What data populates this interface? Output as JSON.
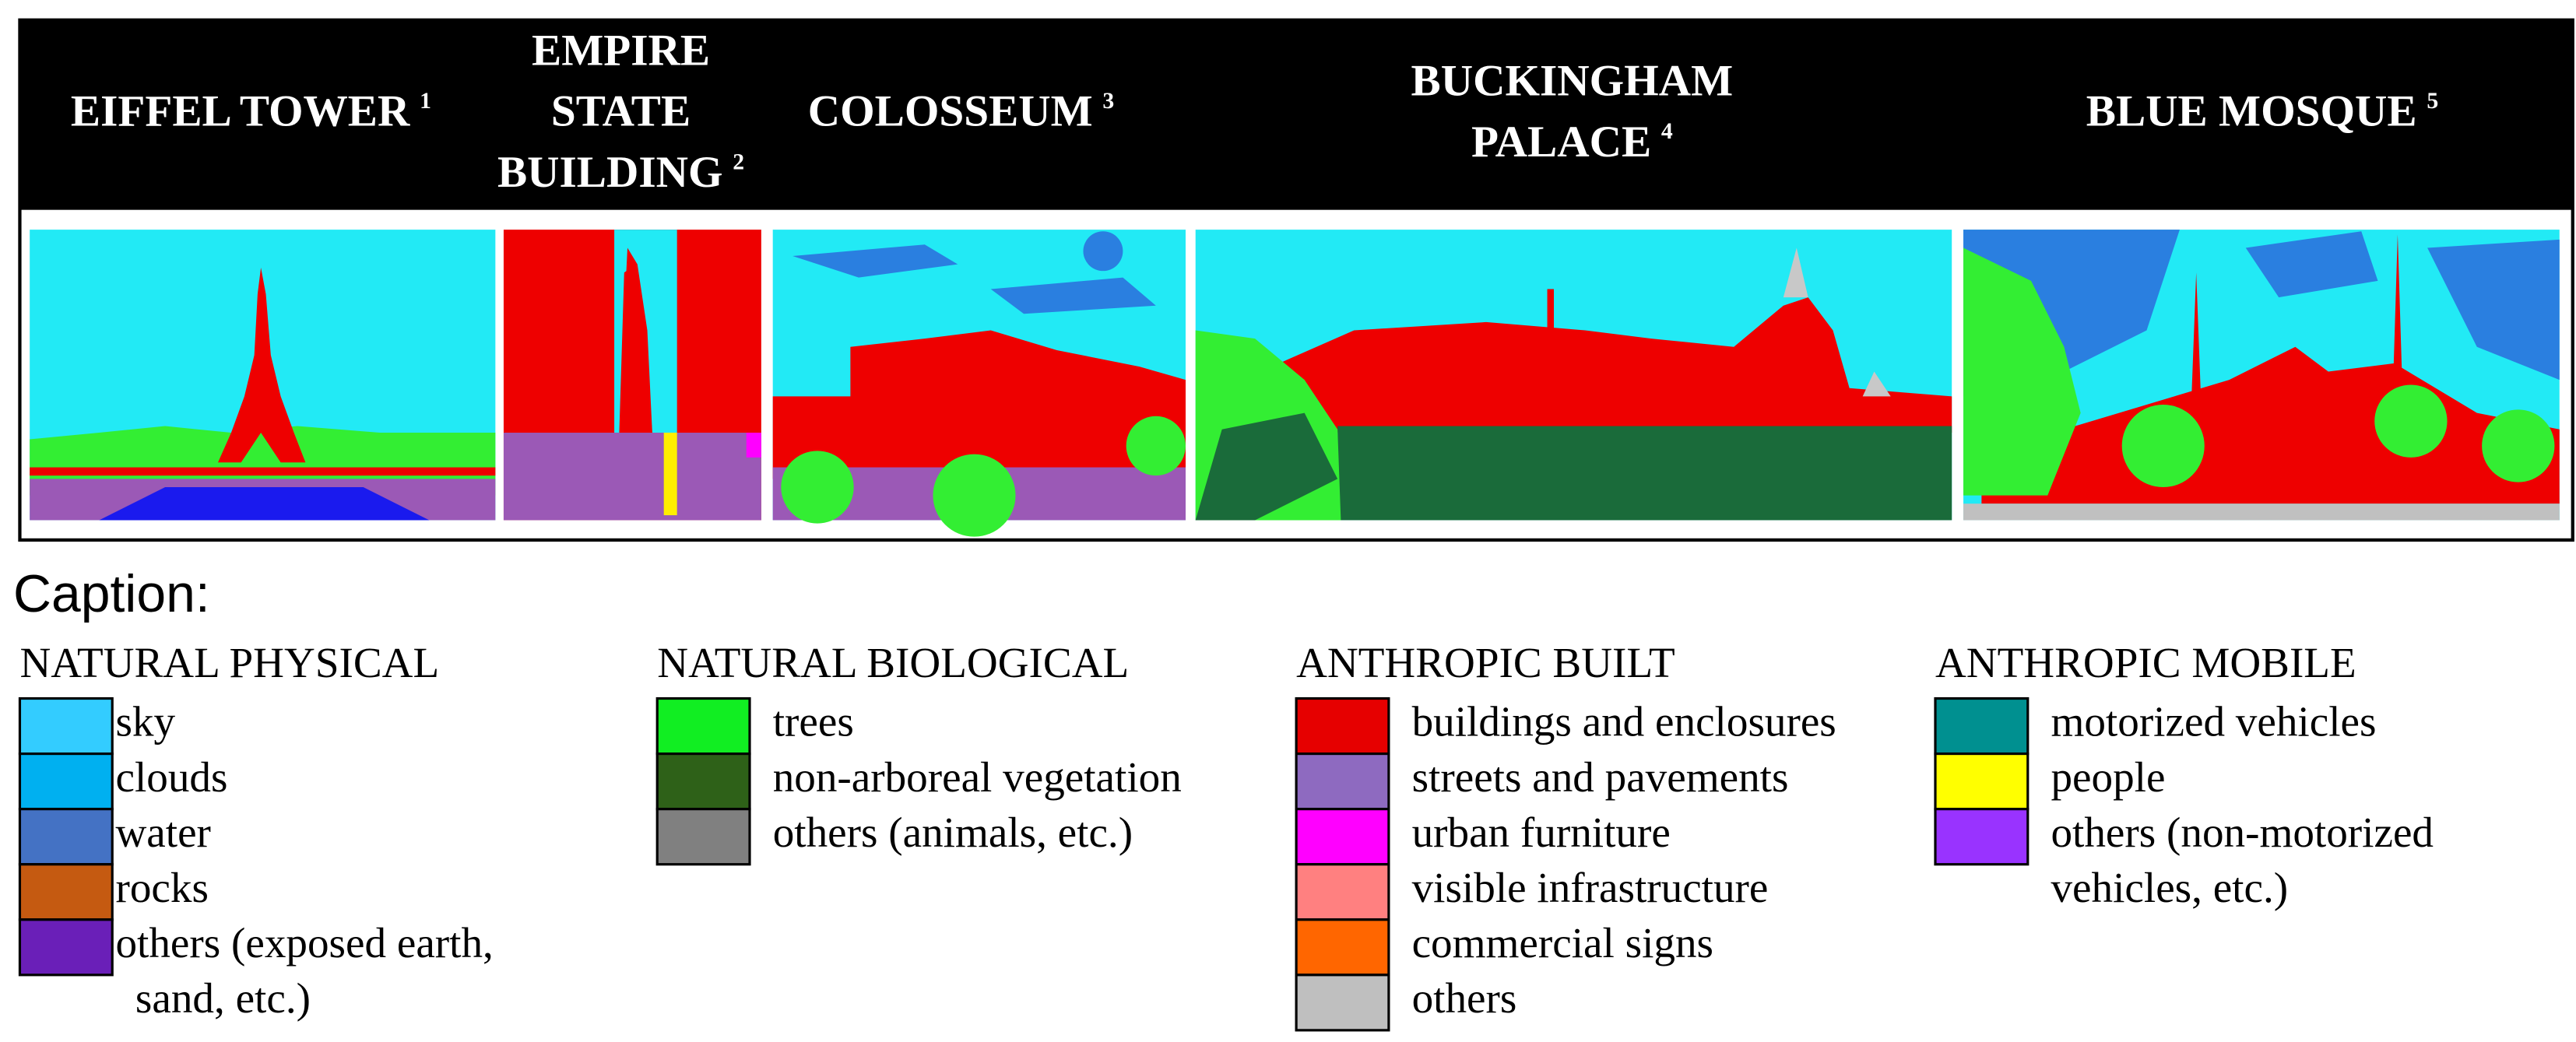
{
  "header": {
    "columns": [
      {
        "lines": [
          "EIFFEL TOWER"
        ],
        "note": "1"
      },
      {
        "lines": [
          "EMPIRE",
          "STATE",
          "BUILDING"
        ],
        "note": "2"
      },
      {
        "lines": [
          "COLOSSEUM"
        ],
        "note": "3"
      },
      {
        "lines": [
          "BUCKINGHAM",
          "PALACE"
        ],
        "note": "4"
      },
      {
        "lines": [
          "BLUE MOSQUE"
        ],
        "note": "5"
      }
    ]
  },
  "caption": {
    "title": "Caption:",
    "groups": [
      {
        "title": "NATURAL PHYSICAL",
        "items": [
          {
            "lines": [
              "sky"
            ],
            "color": "#33ccff"
          },
          {
            "lines": [
              "clouds"
            ],
            "color": "#00b0f0"
          },
          {
            "lines": [
              "water"
            ],
            "color": "#4472c4"
          },
          {
            "lines": [
              "rocks"
            ],
            "color": "#c55a11"
          },
          {
            "lines": [
              "others (exposed earth,",
              "sand, etc.)"
            ],
            "color": "#6a1fb8"
          }
        ]
      },
      {
        "title": "NATURAL BIOLOGICAL",
        "items": [
          {
            "lines": [
              "trees"
            ],
            "color": "#11ee22"
          },
          {
            "lines": [
              "non-arboreal vegetation"
            ],
            "color": "#2e6118"
          },
          {
            "lines": [
              "others (animals, etc.)"
            ],
            "color": "#808080"
          }
        ]
      },
      {
        "title": "ANTHROPIC BUILT",
        "items": [
          {
            "lines": [
              "buildings and enclosures"
            ],
            "color": "#e60000"
          },
          {
            "lines": [
              "streets and pavements"
            ],
            "color": "#8e6ac0"
          },
          {
            "lines": [
              "urban furniture"
            ],
            "color": "#ff00ff"
          },
          {
            "lines": [
              "visible infrastructure"
            ],
            "color": "#ff8080"
          },
          {
            "lines": [
              "commercial signs"
            ],
            "color": "#ff6600"
          },
          {
            "lines": [
              "others"
            ],
            "color": "#bfbfbf"
          }
        ]
      },
      {
        "title": "ANTHROPIC MOBILE",
        "items": [
          {
            "lines": [
              "motorized vehicles"
            ],
            "color": "#009090"
          },
          {
            "lines": [
              "people"
            ],
            "color": "#ffff00"
          },
          {
            "lines": [
              "others (non-motorized",
              "vehicles, etc.)"
            ],
            "color": "#9933ff"
          }
        ]
      }
    ]
  }
}
